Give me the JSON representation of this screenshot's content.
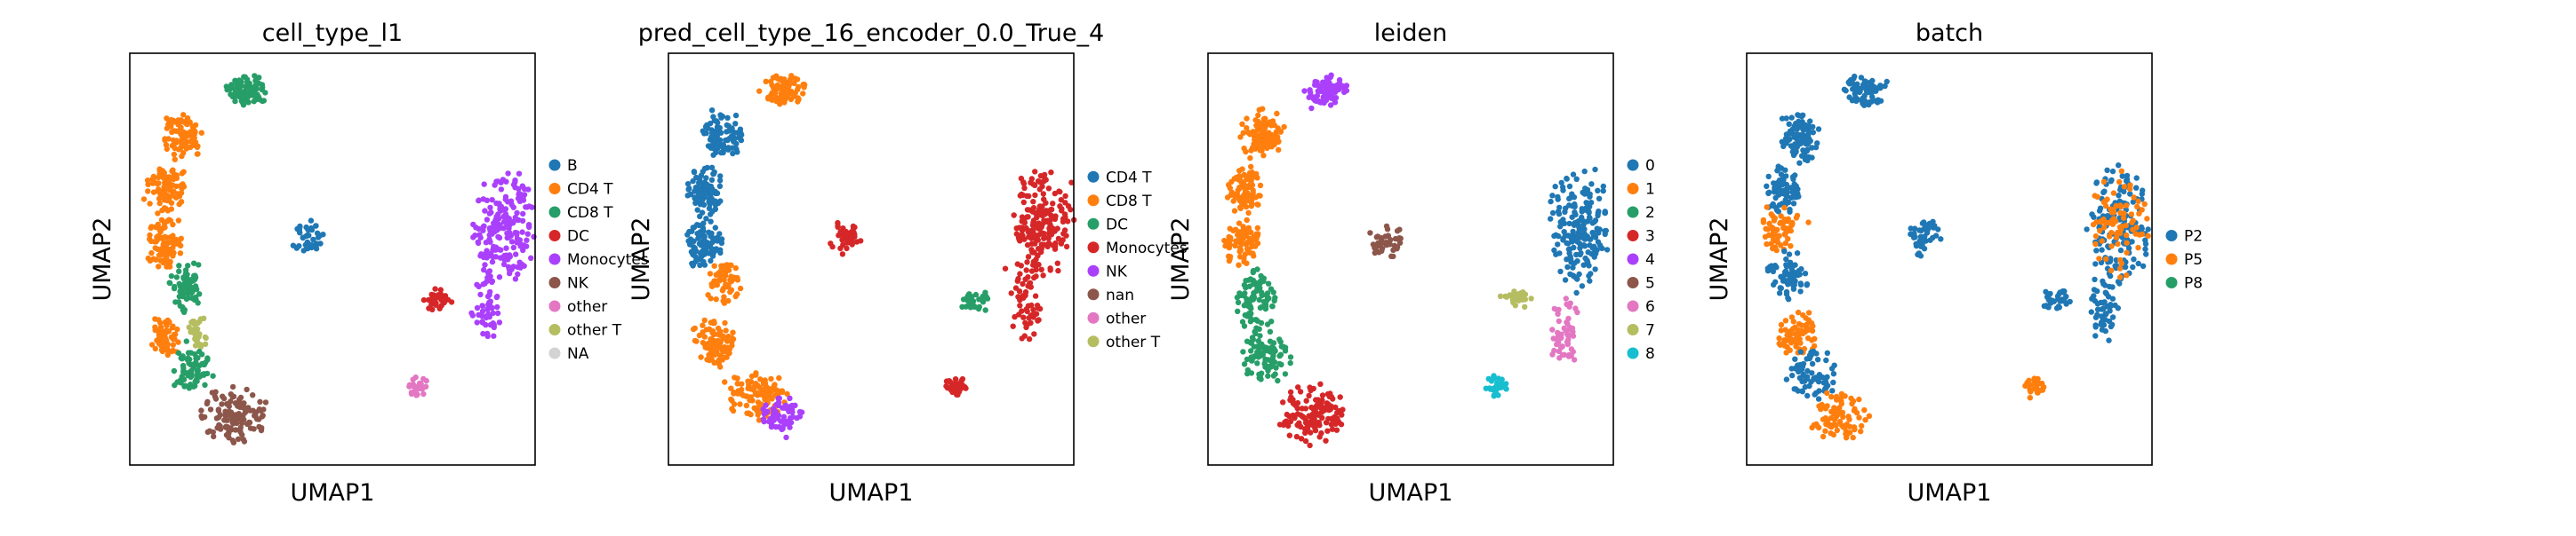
{
  "chart_data": [
    {
      "type": "scatter",
      "title": "cell_type_l1",
      "xlabel": "UMAP1",
      "ylabel": "UMAP2",
      "grid": false,
      "ticks": "none",
      "legend_position": "right",
      "series": [
        {
          "name": "B",
          "color": "#1f77b4"
        },
        {
          "name": "CD4 T",
          "color": "#ff7f0e"
        },
        {
          "name": "CD8 T",
          "color": "#279e68"
        },
        {
          "name": "DC",
          "color": "#d62728"
        },
        {
          "name": "Monocytes",
          "color": "#aa40fc"
        },
        {
          "name": "NK",
          "color": "#8c564b"
        },
        {
          "name": "other",
          "color": "#e377c2"
        },
        {
          "name": "other T",
          "color": "#b5bd61"
        },
        {
          "name": "NA",
          "color": "#d3d3d3"
        }
      ],
      "regions": [
        {
          "series": "CD8 T",
          "x": 0.29,
          "y": 0.09,
          "rx": 0.05,
          "ry": 0.035,
          "n": 80
        },
        {
          "series": "CD4 T",
          "x": 0.13,
          "y": 0.2,
          "rx": 0.05,
          "ry": 0.06,
          "n": 90
        },
        {
          "series": "CD4 T",
          "x": 0.09,
          "y": 0.33,
          "rx": 0.045,
          "ry": 0.06,
          "n": 90
        },
        {
          "series": "CD4 T",
          "x": 0.085,
          "y": 0.46,
          "rx": 0.045,
          "ry": 0.06,
          "n": 90
        },
        {
          "series": "CD8 T",
          "x": 0.14,
          "y": 0.56,
          "rx": 0.04,
          "ry": 0.06,
          "n": 70
        },
        {
          "series": "CD4 T",
          "x": 0.09,
          "y": 0.69,
          "rx": 0.035,
          "ry": 0.05,
          "n": 60
        },
        {
          "series": "other T",
          "x": 0.17,
          "y": 0.68,
          "rx": 0.025,
          "ry": 0.04,
          "n": 30
        },
        {
          "series": "CD8 T",
          "x": 0.15,
          "y": 0.77,
          "rx": 0.05,
          "ry": 0.05,
          "n": 70
        },
        {
          "series": "NK",
          "x": 0.26,
          "y": 0.88,
          "rx": 0.08,
          "ry": 0.07,
          "n": 130
        },
        {
          "series": "B",
          "x": 0.44,
          "y": 0.45,
          "rx": 0.04,
          "ry": 0.045,
          "n": 40
        },
        {
          "series": "Monocytes",
          "x": 0.92,
          "y": 0.42,
          "rx": 0.075,
          "ry": 0.14,
          "n": 190
        },
        {
          "series": "Monocytes",
          "x": 0.88,
          "y": 0.62,
          "rx": 0.035,
          "ry": 0.08,
          "n": 50
        },
        {
          "series": "DC",
          "x": 0.76,
          "y": 0.6,
          "rx": 0.04,
          "ry": 0.025,
          "n": 30
        },
        {
          "series": "other",
          "x": 0.71,
          "y": 0.81,
          "rx": 0.025,
          "ry": 0.025,
          "n": 30
        }
      ]
    },
    {
      "type": "scatter",
      "title": "pred_cell_type_16_encoder_0.0_True_4",
      "xlabel": "UMAP1",
      "ylabel": "UMAP2",
      "grid": false,
      "ticks": "none",
      "legend_position": "right",
      "series": [
        {
          "name": "CD4 T",
          "color": "#1f77b4"
        },
        {
          "name": "CD8 T",
          "color": "#ff7f0e"
        },
        {
          "name": "DC",
          "color": "#279e68"
        },
        {
          "name": "Monocytes",
          "color": "#d62728"
        },
        {
          "name": "NK",
          "color": "#aa40fc"
        },
        {
          "name": "nan",
          "color": "#8c564b"
        },
        {
          "name": "other",
          "color": "#e377c2"
        },
        {
          "name": "other T",
          "color": "#b5bd61"
        }
      ],
      "regions": [
        {
          "series": "CD8 T",
          "x": 0.29,
          "y": 0.09,
          "rx": 0.05,
          "ry": 0.035,
          "n": 80
        },
        {
          "series": "CD4 T",
          "x": 0.13,
          "y": 0.2,
          "rx": 0.05,
          "ry": 0.06,
          "n": 90
        },
        {
          "series": "CD4 T",
          "x": 0.09,
          "y": 0.33,
          "rx": 0.045,
          "ry": 0.06,
          "n": 90
        },
        {
          "series": "CD4 T",
          "x": 0.085,
          "y": 0.46,
          "rx": 0.045,
          "ry": 0.06,
          "n": 90
        },
        {
          "series": "CD8 T",
          "x": 0.14,
          "y": 0.56,
          "rx": 0.04,
          "ry": 0.06,
          "n": 60
        },
        {
          "series": "CD8 T",
          "x": 0.11,
          "y": 0.7,
          "rx": 0.05,
          "ry": 0.06,
          "n": 90
        },
        {
          "series": "CD8 T",
          "x": 0.22,
          "y": 0.83,
          "rx": 0.07,
          "ry": 0.06,
          "n": 100
        },
        {
          "series": "NK",
          "x": 0.28,
          "y": 0.88,
          "rx": 0.05,
          "ry": 0.05,
          "n": 60
        },
        {
          "series": "Monocytes",
          "x": 0.44,
          "y": 0.45,
          "rx": 0.04,
          "ry": 0.045,
          "n": 40
        },
        {
          "series": "Monocytes",
          "x": 0.92,
          "y": 0.42,
          "rx": 0.075,
          "ry": 0.14,
          "n": 190
        },
        {
          "series": "Monocytes",
          "x": 0.88,
          "y": 0.62,
          "rx": 0.035,
          "ry": 0.08,
          "n": 50
        },
        {
          "series": "DC",
          "x": 0.76,
          "y": 0.6,
          "rx": 0.04,
          "ry": 0.025,
          "n": 30
        },
        {
          "series": "Monocytes",
          "x": 0.71,
          "y": 0.81,
          "rx": 0.025,
          "ry": 0.025,
          "n": 30
        }
      ]
    },
    {
      "type": "scatter",
      "title": "leiden",
      "xlabel": "UMAP1",
      "ylabel": "UMAP2",
      "grid": false,
      "ticks": "none",
      "legend_position": "right",
      "series": [
        {
          "name": "0",
          "color": "#1f77b4"
        },
        {
          "name": "1",
          "color": "#ff7f0e"
        },
        {
          "name": "2",
          "color": "#279e68"
        },
        {
          "name": "3",
          "color": "#d62728"
        },
        {
          "name": "4",
          "color": "#aa40fc"
        },
        {
          "name": "5",
          "color": "#8c564b"
        },
        {
          "name": "6",
          "color": "#e377c2"
        },
        {
          "name": "7",
          "color": "#b5bd61"
        },
        {
          "name": "8",
          "color": "#17becf"
        }
      ],
      "regions": [
        {
          "series": "4",
          "x": 0.29,
          "y": 0.09,
          "rx": 0.05,
          "ry": 0.035,
          "n": 80
        },
        {
          "series": "1",
          "x": 0.13,
          "y": 0.2,
          "rx": 0.05,
          "ry": 0.06,
          "n": 90
        },
        {
          "series": "1",
          "x": 0.09,
          "y": 0.33,
          "rx": 0.045,
          "ry": 0.06,
          "n": 90
        },
        {
          "series": "1",
          "x": 0.085,
          "y": 0.46,
          "rx": 0.045,
          "ry": 0.06,
          "n": 80
        },
        {
          "series": "2",
          "x": 0.12,
          "y": 0.6,
          "rx": 0.05,
          "ry": 0.07,
          "n": 90
        },
        {
          "series": "2",
          "x": 0.14,
          "y": 0.74,
          "rx": 0.06,
          "ry": 0.06,
          "n": 90
        },
        {
          "series": "3",
          "x": 0.26,
          "y": 0.88,
          "rx": 0.08,
          "ry": 0.07,
          "n": 130
        },
        {
          "series": "5",
          "x": 0.44,
          "y": 0.45,
          "rx": 0.04,
          "ry": 0.045,
          "n": 40
        },
        {
          "series": "0",
          "x": 0.92,
          "y": 0.42,
          "rx": 0.075,
          "ry": 0.14,
          "n": 190
        },
        {
          "series": "6",
          "x": 0.88,
          "y": 0.68,
          "rx": 0.035,
          "ry": 0.08,
          "n": 50
        },
        {
          "series": "7",
          "x": 0.76,
          "y": 0.6,
          "rx": 0.04,
          "ry": 0.025,
          "n": 30
        },
        {
          "series": "8",
          "x": 0.71,
          "y": 0.81,
          "rx": 0.025,
          "ry": 0.025,
          "n": 30
        }
      ]
    },
    {
      "type": "scatter",
      "title": "batch",
      "xlabel": "UMAP1",
      "ylabel": "UMAP2",
      "grid": false,
      "ticks": "none",
      "legend_position": "right",
      "series": [
        {
          "name": "P2",
          "color": "#1f77b4"
        },
        {
          "name": "P5",
          "color": "#ff7f0e"
        },
        {
          "name": "P8",
          "color": "#279e68"
        }
      ],
      "regions": [
        {
          "series": "P2",
          "x": 0.29,
          "y": 0.09,
          "rx": 0.05,
          "ry": 0.035,
          "n": 80
        },
        {
          "series": "P2",
          "x": 0.13,
          "y": 0.2,
          "rx": 0.05,
          "ry": 0.06,
          "n": 90
        },
        {
          "series": "P2",
          "x": 0.09,
          "y": 0.33,
          "rx": 0.045,
          "ry": 0.06,
          "n": 80
        },
        {
          "series": "P5",
          "x": 0.085,
          "y": 0.43,
          "rx": 0.045,
          "ry": 0.06,
          "n": 60
        },
        {
          "series": "P2",
          "x": 0.1,
          "y": 0.54,
          "rx": 0.05,
          "ry": 0.06,
          "n": 70
        },
        {
          "series": "P5",
          "x": 0.12,
          "y": 0.68,
          "rx": 0.05,
          "ry": 0.06,
          "n": 70
        },
        {
          "series": "P2",
          "x": 0.16,
          "y": 0.78,
          "rx": 0.06,
          "ry": 0.06,
          "n": 70
        },
        {
          "series": "P5",
          "x": 0.23,
          "y": 0.88,
          "rx": 0.07,
          "ry": 0.06,
          "n": 80
        },
        {
          "series": "P2",
          "x": 0.44,
          "y": 0.45,
          "rx": 0.04,
          "ry": 0.045,
          "n": 40
        },
        {
          "series": "P2",
          "x": 0.92,
          "y": 0.42,
          "rx": 0.075,
          "ry": 0.14,
          "n": 150
        },
        {
          "series": "P5",
          "x": 0.92,
          "y": 0.42,
          "rx": 0.07,
          "ry": 0.13,
          "n": 80
        },
        {
          "series": "P2",
          "x": 0.88,
          "y": 0.62,
          "rx": 0.035,
          "ry": 0.08,
          "n": 50
        },
        {
          "series": "P2",
          "x": 0.76,
          "y": 0.6,
          "rx": 0.04,
          "ry": 0.025,
          "n": 30
        },
        {
          "series": "P5",
          "x": 0.71,
          "y": 0.81,
          "rx": 0.025,
          "ry": 0.025,
          "n": 30
        }
      ]
    }
  ]
}
